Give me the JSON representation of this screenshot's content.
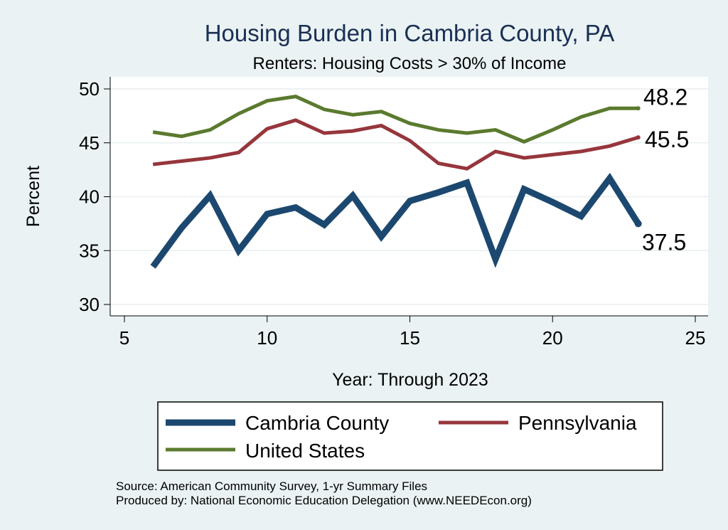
{
  "chart_data": {
    "type": "line",
    "title": "Housing Burden in Cambria County, PA",
    "subtitle": "Renters: Housing Costs > 30% of Income",
    "xlabel": "Year: Through 2023",
    "ylabel": "Percent",
    "xlim": [
      5,
      25
    ],
    "ylim": [
      30,
      50
    ],
    "xticks": [
      5,
      10,
      15,
      20,
      25
    ],
    "yticks": [
      30,
      35,
      40,
      45,
      50
    ],
    "grid": true,
    "x": [
      6,
      7,
      8,
      9,
      10,
      11,
      12,
      13,
      14,
      15,
      16,
      17,
      18,
      19,
      20,
      21,
      22,
      23
    ],
    "series": [
      {
        "name": "Cambria County",
        "color": "#1c4870",
        "values": [
          33.5,
          37.1,
          40.1,
          35.0,
          38.4,
          39.0,
          37.4,
          40.1,
          36.3,
          39.6,
          40.4,
          41.3,
          34.2,
          40.7,
          39.5,
          38.2,
          41.7,
          37.5
        ],
        "end_label": "37.5"
      },
      {
        "name": "Pennsylvania",
        "color": "#96363c",
        "values": [
          43.0,
          43.3,
          43.6,
          44.1,
          46.3,
          47.1,
          45.9,
          46.1,
          46.6,
          45.2,
          43.1,
          42.6,
          44.2,
          43.6,
          43.9,
          44.2,
          44.7,
          45.5
        ],
        "end_label": "45.5"
      },
      {
        "name": "United States",
        "color": "#5a7a2e",
        "values": [
          46.0,
          45.6,
          46.2,
          47.7,
          48.9,
          49.3,
          48.1,
          47.6,
          47.9,
          46.8,
          46.2,
          45.9,
          46.2,
          45.1,
          46.2,
          47.4,
          48.2,
          48.2
        ],
        "end_label": "48.2"
      }
    ],
    "legend": [
      "Cambria County",
      "Pennsylvania",
      "United States"
    ]
  },
  "notes": {
    "source": "Source: American Community Survey, 1-yr Summary Files",
    "produced_by": "Produced by: National Economic Education Delegation (www.NEEDEcon.org)"
  }
}
